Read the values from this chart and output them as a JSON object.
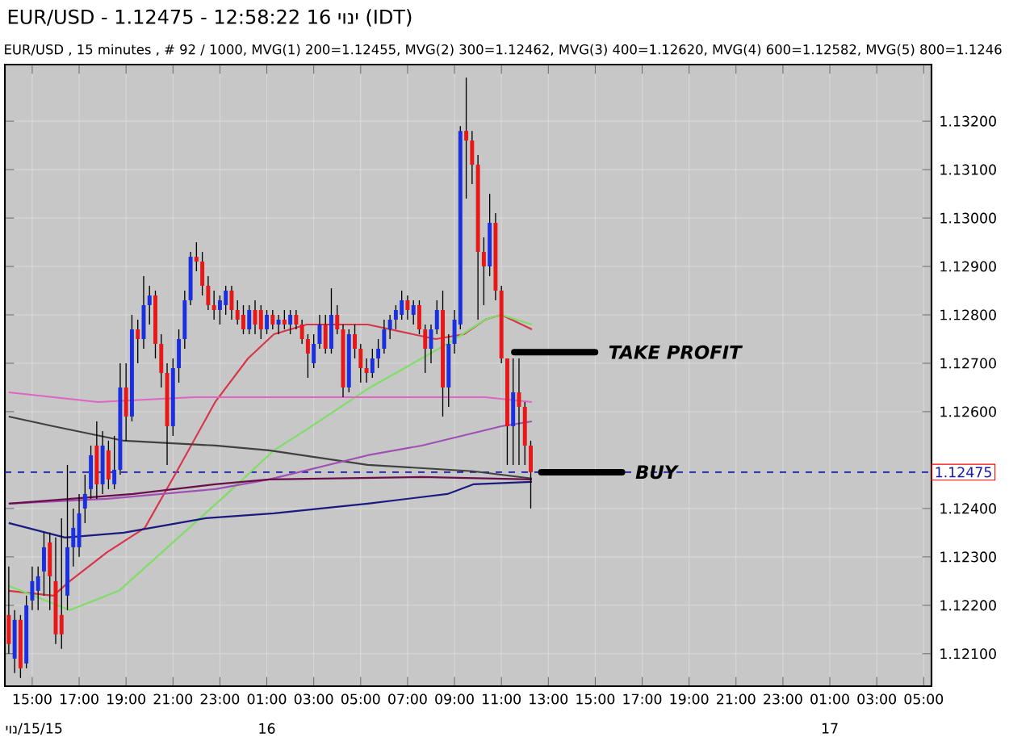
{
  "chart_data": {
    "type": "candlestick",
    "title": "EUR/USD - 1.12475 - 12:58:22 16 יוני (IDT)",
    "subtitle": "EUR/USD , 15 minutes , # 92 / 1000, MVG(1) 200=1.12455, MVG(2) 300=1.12462, MVG(3) 400=1.12620, MVG(4) 600=1.12582, MVG(5) 800=1.1246",
    "x": [
      "--06-15T14:00",
      "--06-15T14:15",
      "--06-15T14:30",
      "--06-15T14:45",
      "--06-15T15:00",
      "--06-15T15:15",
      "--06-15T15:30",
      "--06-15T15:45",
      "--06-15T16:00",
      "--06-15T16:15",
      "--06-15T16:30",
      "--06-15T16:45",
      "--06-15T17:00",
      "--06-15T17:15",
      "--06-15T17:30",
      "--06-15T17:45",
      "--06-15T18:00",
      "--06-15T18:15",
      "--06-15T18:30",
      "--06-15T18:45",
      "--06-15T19:00",
      "--06-15T19:15",
      "--06-15T19:30",
      "--06-15T19:45",
      "--06-15T20:00",
      "--06-15T20:15",
      "--06-15T20:30",
      "--06-15T20:45",
      "--06-15T21:00",
      "--06-15T21:15",
      "--06-15T21:30",
      "--06-15T21:45",
      "--06-15T22:00",
      "--06-15T22:15",
      "--06-15T22:30",
      "--06-15T22:45",
      "--06-15T23:00",
      "--06-15T23:15",
      "--06-15T23:30",
      "--06-15T23:45",
      "--06-16T00:00",
      "--06-16T00:15",
      "--06-16T00:30",
      "--06-16T00:45",
      "--06-16T01:00",
      "--06-16T01:15",
      "--06-16T01:30",
      "--06-16T01:45",
      "--06-16T02:00",
      "--06-16T02:15",
      "--06-16T02:30",
      "--06-16T02:45",
      "--06-16T03:00",
      "--06-16T03:15",
      "--06-16T03:30",
      "--06-16T03:45",
      "--06-16T04:00",
      "--06-16T04:15",
      "--06-16T04:30",
      "--06-16T04:45",
      "--06-16T05:00",
      "--06-16T05:15",
      "--06-16T05:30",
      "--06-16T05:45",
      "--06-16T06:00",
      "--06-16T06:15",
      "--06-16T06:30",
      "--06-16T06:45",
      "--06-16T07:00",
      "--06-16T07:15",
      "--06-16T07:30",
      "--06-16T07:45",
      "--06-16T08:00",
      "--06-16T08:15",
      "--06-16T08:30",
      "--06-16T08:45",
      "--06-16T09:00",
      "--06-16T09:15",
      "--06-16T09:30",
      "--06-16T09:45",
      "--06-16T10:00",
      "--06-16T10:15",
      "--06-16T10:30",
      "--06-16T10:45",
      "--06-16T11:00",
      "--06-16T11:15",
      "--06-16T11:30",
      "--06-16T11:45",
      "--06-16T12:00",
      "--06-16T12:15"
    ],
    "ohlc": [
      [
        1.1218,
        1.1228,
        1.121,
        1.1212
      ],
      [
        1.1209,
        1.1219,
        1.1206,
        1.1217
      ],
      [
        1.1217,
        1.1218,
        1.1205,
        1.1207
      ],
      [
        1.1208,
        1.1222,
        1.1207,
        1.122
      ],
      [
        1.1221,
        1.1228,
        1.1219,
        1.1225
      ],
      [
        1.1223,
        1.1228,
        1.1219,
        1.1226
      ],
      [
        1.1227,
        1.1235,
        1.1222,
        1.1232
      ],
      [
        1.1233,
        1.1235,
        1.1219,
        1.1226
      ],
      [
        1.1225,
        1.1234,
        1.1212,
        1.1214
      ],
      [
        1.1218,
        1.1238,
        1.1211,
        1.1214
      ],
      [
        1.1222,
        1.1249,
        1.1219,
        1.1232
      ],
      [
        1.1232,
        1.124,
        1.1228,
        1.1236
      ],
      [
        1.1232,
        1.1243,
        1.123,
        1.1239
      ],
      [
        1.124,
        1.1247,
        1.1237,
        1.1243
      ],
      [
        1.1244,
        1.1253,
        1.1242,
        1.1251
      ],
      [
        1.1253,
        1.1258,
        1.1242,
        1.1245
      ],
      [
        1.1245,
        1.1256,
        1.1243,
        1.1253
      ],
      [
        1.1252,
        1.1254,
        1.1244,
        1.1246
      ],
      [
        1.1245,
        1.1255,
        1.1244,
        1.1248
      ],
      [
        1.1248,
        1.127,
        1.1247,
        1.1265
      ],
      [
        1.1265,
        1.127,
        1.1254,
        1.1259
      ],
      [
        1.1259,
        1.128,
        1.1258,
        1.1277
      ],
      [
        1.1277,
        1.1279,
        1.127,
        1.1275
      ],
      [
        1.1275,
        1.1288,
        1.1273,
        1.1282
      ],
      [
        1.1282,
        1.1286,
        1.1278,
        1.1284
      ],
      [
        1.1284,
        1.1285,
        1.1271,
        1.1274
      ],
      [
        1.1274,
        1.1276,
        1.1265,
        1.1268
      ],
      [
        1.1268,
        1.127,
        1.1249,
        1.1257
      ],
      [
        1.1257,
        1.1271,
        1.1255,
        1.1269
      ],
      [
        1.1269,
        1.1277,
        1.1266,
        1.1275
      ],
      [
        1.1275,
        1.1285,
        1.1273,
        1.1283
      ],
      [
        1.1283,
        1.1293,
        1.1282,
        1.1292
      ],
      [
        1.1292,
        1.1295,
        1.1289,
        1.1291
      ],
      [
        1.1291,
        1.1293,
        1.1284,
        1.1286
      ],
      [
        1.1286,
        1.1288,
        1.1281,
        1.1282
      ],
      [
        1.1282,
        1.1285,
        1.1279,
        1.1281
      ],
      [
        1.1281,
        1.1284,
        1.1278,
        1.1283
      ],
      [
        1.1282,
        1.1286,
        1.128,
        1.1285
      ],
      [
        1.1285,
        1.1286,
        1.1279,
        1.1281
      ],
      [
        1.1281,
        1.1283,
        1.1278,
        1.1279
      ],
      [
        1.128,
        1.1282,
        1.1276,
        1.1277
      ],
      [
        1.1277,
        1.1282,
        1.1276,
        1.1281
      ],
      [
        1.1281,
        1.1283,
        1.1276,
        1.1278
      ],
      [
        1.1281,
        1.1282,
        1.1275,
        1.1277
      ],
      [
        1.1277,
        1.1281,
        1.1276,
        1.128
      ],
      [
        1.128,
        1.1281,
        1.1277,
        1.1278
      ],
      [
        1.1278,
        1.128,
        1.1276,
        1.1279
      ],
      [
        1.1279,
        1.1281,
        1.1277,
        1.1278
      ],
      [
        1.1278,
        1.1281,
        1.1276,
        1.128
      ],
      [
        1.128,
        1.1281,
        1.1277,
        1.1278
      ],
      [
        1.1278,
        1.1279,
        1.1274,
        1.1275
      ],
      [
        1.1275,
        1.1276,
        1.1267,
        1.1272
      ],
      [
        1.127,
        1.1276,
        1.1269,
        1.1274
      ],
      [
        1.1274,
        1.128,
        1.1273,
        1.1278
      ],
      [
        1.1278,
        1.128,
        1.1272,
        1.1273
      ],
      [
        1.1273,
        1.12855,
        1.1272,
        1.128
      ],
      [
        1.128,
        1.1282,
        1.1276,
        1.1277
      ],
      [
        1.1277,
        1.1278,
        1.1263,
        1.1265
      ],
      [
        1.1265,
        1.1277,
        1.1264,
        1.1276
      ],
      [
        1.1276,
        1.1278,
        1.1271,
        1.1273
      ],
      [
        1.1273,
        1.1274,
        1.1266,
        1.1269
      ],
      [
        1.1269,
        1.1271,
        1.1266,
        1.1268
      ],
      [
        1.1268,
        1.1273,
        1.1267,
        1.1271
      ],
      [
        1.1271,
        1.1275,
        1.1269,
        1.1273
      ],
      [
        1.1273,
        1.1279,
        1.1272,
        1.1277
      ],
      [
        1.1277,
        1.128,
        1.1275,
        1.1279
      ],
      [
        1.1279,
        1.1282,
        1.1277,
        1.1281
      ],
      [
        1.128,
        1.1285,
        1.1279,
        1.1283
      ],
      [
        1.1283,
        1.1284,
        1.1279,
        1.1281
      ],
      [
        1.128,
        1.1283,
        1.1278,
        1.1282
      ],
      [
        1.1282,
        1.1283,
        1.1276,
        1.1277
      ],
      [
        1.1277,
        1.1278,
        1.1268,
        1.1273
      ],
      [
        1.1273,
        1.1278,
        1.127,
        1.1277
      ],
      [
        1.1277,
        1.1283,
        1.1276,
        1.1281
      ],
      [
        1.1281,
        1.1285,
        1.1259,
        1.1265
      ],
      [
        1.1265,
        1.1276,
        1.1261,
        1.1274
      ],
      [
        1.1274,
        1.1281,
        1.1272,
        1.1279
      ],
      [
        1.1278,
        1.1319,
        1.1277,
        1.1318
      ],
      [
        1.1318,
        1.1329,
        1.1304,
        1.1316
      ],
      [
        1.1316,
        1.1318,
        1.1307,
        1.1311
      ],
      [
        1.1311,
        1.1313,
        1.1279,
        1.1293
      ],
      [
        1.1293,
        1.1296,
        1.1282,
        1.129
      ],
      [
        1.129,
        1.1305,
        1.1288,
        1.1299
      ],
      [
        1.1299,
        1.1301,
        1.1283,
        1.1285
      ],
      [
        1.1285,
        1.1286,
        1.127,
        1.1271
      ],
      [
        1.1271,
        1.1271,
        1.1249,
        1.1257
      ],
      [
        1.1257,
        1.1271,
        1.1249,
        1.1264
      ],
      [
        1.1264,
        1.1271,
        1.1249,
        1.1261
      ],
      [
        1.1261,
        1.1262,
        1.1249,
        1.1253
      ],
      [
        1.1253,
        1.1254,
        1.124,
        1.12475
      ]
    ],
    "series": [
      {
        "type": "line",
        "color": "#d8344a",
        "x": [
          "--06-15T14:00",
          "--06-15T15:54",
          "--06-15T16:36",
          "--06-15T18:12",
          "--06-15T19:48",
          "--06-15T21:12",
          "--06-15T22:48",
          "--06-16T00:12",
          "--06-16T01:18",
          "--06-16T02:42",
          "--06-16T05:18",
          "--06-16T08:12",
          "--06-16T09:24",
          "--06-16T10:18",
          "--06-16T11:00",
          "--06-16T12:18"
        ],
        "values": [
          1.1223,
          1.1222,
          1.1225,
          1.1231,
          1.1236,
          1.1248,
          1.1262,
          1.1271,
          1.1276,
          1.1278,
          1.1278,
          1.1275,
          1.1276,
          1.1279,
          1.128,
          1.1277
        ]
      },
      {
        "type": "line",
        "color": "#7ede66",
        "x": [
          "--06-15T14:00",
          "--06-15T16:36",
          "--06-15T18:42",
          "--06-15T21:00",
          "--06-15T23:18",
          "--06-16T01:18",
          "--06-16T02:36",
          "--06-16T05:24",
          "--06-16T08:42",
          "--06-16T10:18",
          "--06-16T11:00",
          "--06-16T12:18"
        ],
        "values": [
          1.1224,
          1.1219,
          1.1223,
          1.1233,
          1.1243,
          1.1252,
          1.1256,
          1.1265,
          1.1274,
          1.1279,
          1.128,
          1.1278
        ]
      },
      {
        "type": "line",
        "color": "#e064c4",
        "x": [
          "--06-15T14:00",
          "--06-15T17:48",
          "--06-15T21:54",
          "--06-16T01:18",
          "--06-16T07:36",
          "--06-16T10:18",
          "--06-16T12:18"
        ],
        "values": [
          1.1264,
          1.1262,
          1.1263,
          1.1263,
          1.1263,
          1.1263,
          1.1262
        ]
      },
      {
        "type": "line",
        "color": "#404040",
        "x": [
          "--06-15T14:00",
          "--06-15T15:54",
          "--06-15T18:54",
          "--06-15T22:48",
          "--06-16T01:06",
          "--06-16T05:18",
          "--06-16T09:48",
          "--06-16T12:18"
        ],
        "values": [
          1.1259,
          1.1257,
          1.1254,
          1.1253,
          1.1252,
          1.1249,
          1.12477,
          1.12462
        ]
      },
      {
        "type": "line",
        "color": "#a050b4",
        "x": [
          "--06-15T14:00",
          "--06-15T18:12",
          "--06-15T22:48",
          "--06-16T01:06",
          "--06-16T05:18",
          "--06-16T07:36",
          "--06-16T11:00",
          "--06-16T12:18"
        ],
        "values": [
          1.1241,
          1.1242,
          1.1244,
          1.1246,
          1.1251,
          1.1253,
          1.1257,
          1.1258
        ]
      },
      {
        "type": "line",
        "color": "#6a0e4a",
        "x": [
          "--06-15T14:00",
          "--06-15T19:18",
          "--06-15T22:48",
          "--06-16T01:06",
          "--06-16T07:36",
          "--06-16T12:18"
        ],
        "values": [
          1.1241,
          1.1243,
          1.1245,
          1.1246,
          1.12465,
          1.1246
        ]
      },
      {
        "type": "line",
        "color": "#1a1a80",
        "x": [
          "--06-15T14:00",
          "--06-15T16:24",
          "--06-15T18:54",
          "--06-15T22:24",
          "--06-16T01:18",
          "--06-16T05:18",
          "--06-16T08:42",
          "--06-16T09:48",
          "--06-16T12:18"
        ],
        "values": [
          1.1237,
          1.1234,
          1.1235,
          1.1238,
          1.1239,
          1.1241,
          1.1243,
          1.1245,
          1.12455
        ]
      }
    ],
    "xlim": [
      "--06-15T13:50",
      "--06-17T05:20"
    ],
    "ylim": [
      1.12033,
      1.13317
    ],
    "xticks": [
      {
        "value": "--06-15T15:00",
        "label": "15:00"
      },
      {
        "value": "--06-15T17:00",
        "label": "17:00"
      },
      {
        "value": "--06-15T19:00",
        "label": "19:00"
      },
      {
        "value": "--06-15T21:00",
        "label": "21:00"
      },
      {
        "value": "--06-15T23:00",
        "label": "23:00"
      },
      {
        "value": "--06-16T01:00",
        "label": "01:00"
      },
      {
        "value": "--06-16T03:00",
        "label": "03:00"
      },
      {
        "value": "--06-16T05:00",
        "label": "05:00"
      },
      {
        "value": "--06-16T07:00",
        "label": "07:00"
      },
      {
        "value": "--06-16T09:00",
        "label": "09:00"
      },
      {
        "value": "--06-16T11:00",
        "label": "11:00"
      },
      {
        "value": "--06-16T13:00",
        "label": "13:00"
      },
      {
        "value": "--06-16T15:00",
        "label": "15:00"
      },
      {
        "value": "--06-16T17:00",
        "label": "17:00"
      },
      {
        "value": "--06-16T19:00",
        "label": "19:00"
      },
      {
        "value": "--06-16T21:00",
        "label": "21:00"
      },
      {
        "value": "--06-16T23:00",
        "label": "23:00"
      },
      {
        "value": "--06-17T01:00",
        "label": "01:00"
      },
      {
        "value": "--06-17T03:00",
        "label": "03:00"
      },
      {
        "value": "--06-17T05:00",
        "label": "05:00"
      }
    ],
    "yticks": [
      {
        "value": 1.121,
        "label": "1.12100"
      },
      {
        "value": 1.122,
        "label": "1.12200"
      },
      {
        "value": 1.123,
        "label": "1.12300"
      },
      {
        "value": 1.124,
        "label": "1.12400"
      },
      {
        "value": 1.126,
        "label": "1.12600"
      },
      {
        "value": 1.127,
        "label": "1.12700"
      },
      {
        "value": 1.128,
        "label": "1.12800"
      },
      {
        "value": 1.129,
        "label": "1.12900"
      },
      {
        "value": 1.13,
        "label": "1.13000"
      },
      {
        "value": 1.131,
        "label": "1.13100"
      },
      {
        "value": 1.132,
        "label": "1.13200"
      }
    ],
    "ref_lines": [
      {
        "axis": "y",
        "value": 1.12475,
        "label": "1.12475",
        "color": "#1a1aa8",
        "line_style": "dashed"
      }
    ],
    "annotations": [
      {
        "text": "TAKE PROFIT",
        "x": "--06-16T11:33",
        "y": 1.12723
      },
      {
        "text": "BUY",
        "x": "--06-16T12:42",
        "y": 1.12475
      },
      "יונ/15/15",
      "16",
      "17"
    ],
    "grid": true
  }
}
